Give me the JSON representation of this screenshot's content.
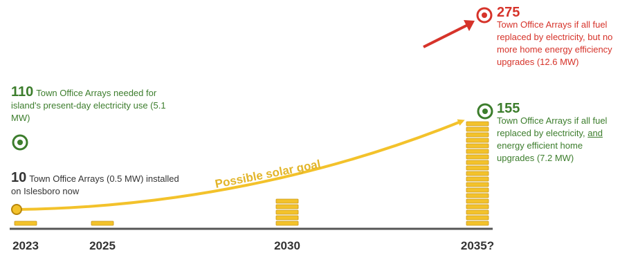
{
  "chart_data": {
    "type": "bar",
    "categories": [
      "2023",
      "2025",
      "2030",
      "2035?"
    ],
    "values": [
      10,
      10,
      40,
      155
    ],
    "curve_label": "Possible solar goal",
    "colors": {
      "bar": "#f3c22b",
      "bar_edge": "#c9961a",
      "axis": "#555555",
      "green": "#3c7d2c",
      "red": "#d6332a",
      "text": "#333333"
    },
    "annotations": {
      "present_day": {
        "value": "110",
        "text": "Town Office Arrays needed for island's present-day electricity use (5.1 MW)"
      },
      "now": {
        "value": "10",
        "text": "Town Office Arrays (0.5 MW) installed on Islesboro now"
      },
      "max": {
        "value": "275",
        "text": "Town Office Arrays if all fuel replaced by electricity, but no more home energy efficiency upgrades (12.6 MW)"
      },
      "goal": {
        "value": "155",
        "text_before": "Town Office Arrays if all fuel replaced by electricity, ",
        "text_underlined": "and",
        "text_after": " energy efficient home upgrades (7.2 MW)"
      }
    },
    "icons": [
      "target-icon-green-present",
      "target-icon-green-goal",
      "target-icon-red-max"
    ]
  }
}
